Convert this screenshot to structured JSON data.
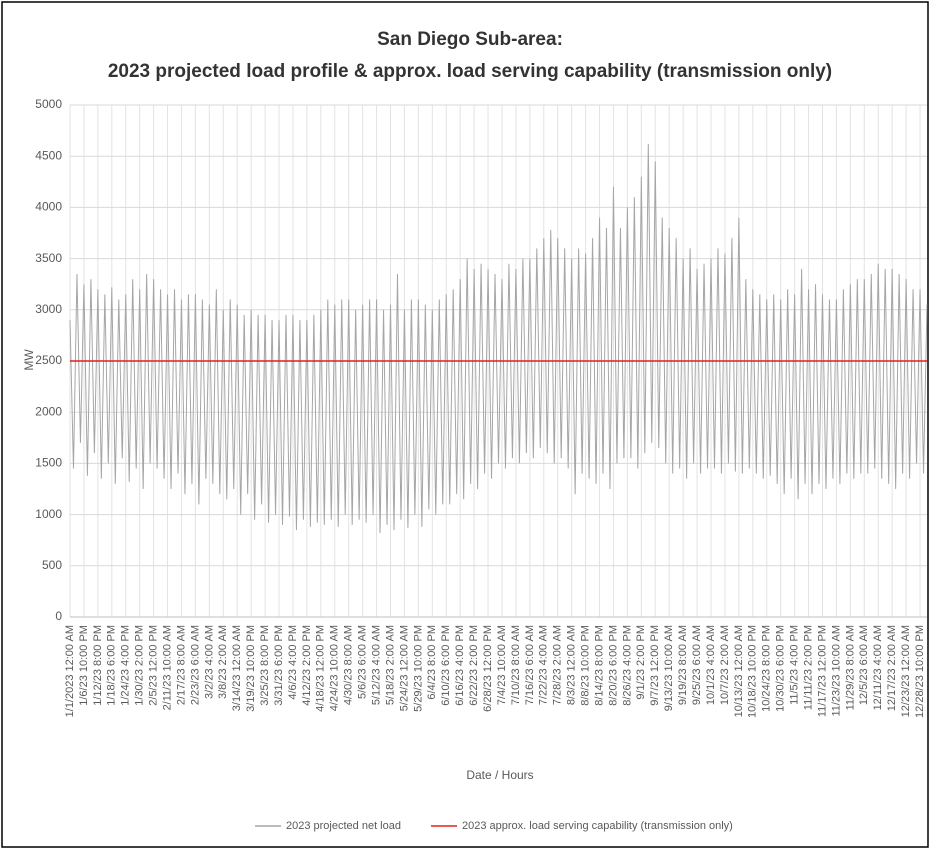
{
  "chart_data": {
    "type": "line",
    "title": [
      "San Diego Sub-area:",
      "2023 projected load profile & approx. load serving capability (transmission only)"
    ],
    "x_label": "Date / Hours",
    "y_label": "MW",
    "ylim": [
      0,
      5000
    ],
    "yticks": [
      0,
      500,
      1000,
      1500,
      2000,
      2500,
      3000,
      3500,
      4000,
      4500,
      5000
    ],
    "grid": true,
    "categories": [
      "1/1/2023 12:00 AM",
      null,
      null,
      null,
      "1/6/23 10:00 PM",
      null,
      null,
      null,
      "1/12/23 8:00 PM",
      null,
      null,
      null,
      "1/18/23 6:00 PM",
      null,
      null,
      null,
      "1/24/23 4:00 PM",
      null,
      null,
      null,
      "1/30/23 2:00 PM",
      null,
      null,
      null,
      "2/5/23 12:00 PM",
      null,
      null,
      null,
      "2/11/23 10:00 AM",
      null,
      null,
      null,
      "2/17/23 8:00 AM",
      null,
      null,
      null,
      "2/23/23 6:00 AM",
      null,
      null,
      null,
      "3/2/23 4:00 AM",
      null,
      null,
      null,
      "3/8/23 2:00 AM",
      null,
      null,
      null,
      "3/14/23 12:00 AM",
      null,
      null,
      null,
      "3/19/23 10:00 PM",
      null,
      null,
      null,
      "3/25/23 8:00 PM",
      null,
      null,
      null,
      "3/31/23 6:00 PM",
      null,
      null,
      null,
      "4/6/23 4:00 PM",
      null,
      null,
      null,
      "4/12/23 2:00 PM",
      null,
      null,
      null,
      "4/18/23 12:00 PM",
      null,
      null,
      null,
      "4/24/23 10:00 AM",
      null,
      null,
      null,
      "4/30/23 8:00 AM",
      null,
      null,
      null,
      "5/6/23 6:00 AM",
      null,
      null,
      null,
      "5/12/23 4:00 AM",
      null,
      null,
      null,
      "5/18/23 2:00 AM",
      null,
      null,
      null,
      "5/24/23 12:00 AM",
      null,
      null,
      null,
      "5/29/23 10:00 PM",
      null,
      null,
      null,
      "6/4/23 8:00 PM",
      null,
      null,
      null,
      "6/10/23 6:00 PM",
      null,
      null,
      null,
      "6/16/23 4:00 PM",
      null,
      null,
      null,
      "6/22/23 2:00 PM",
      null,
      null,
      null,
      "6/28/23 12:00 PM",
      null,
      null,
      null,
      "7/4/23 10:00 AM",
      null,
      null,
      null,
      "7/10/23 8:00 AM",
      null,
      null,
      null,
      "7/16/23 6:00 AM",
      null,
      null,
      null,
      "7/22/23 4:00 AM",
      null,
      null,
      null,
      "7/28/23 2:00 AM",
      null,
      null,
      null,
      "8/3/23 12:00 AM",
      null,
      null,
      null,
      "8/8/23 10:00 PM",
      null,
      null,
      null,
      "8/14/23 8:00 PM",
      null,
      null,
      null,
      "8/20/23 6:00 PM",
      null,
      null,
      null,
      "8/26/23 4:00 PM",
      null,
      null,
      null,
      "9/1/23 2:00 PM",
      null,
      null,
      null,
      "9/7/23 12:00 PM",
      null,
      null,
      null,
      "9/13/23 10:00 AM",
      null,
      null,
      null,
      "9/19/23 8:00 AM",
      null,
      null,
      null,
      "9/25/23 6:00 AM",
      null,
      null,
      null,
      "10/1/23 4:00 AM",
      null,
      null,
      null,
      "10/7/23 2:00 AM",
      null,
      null,
      null,
      "10/13/23 12:00 AM",
      null,
      null,
      null,
      "10/18/23 10:00 PM",
      null,
      null,
      null,
      "10/24/23 8:00 PM",
      null,
      null,
      null,
      "10/30/23 6:00 PM",
      null,
      null,
      null,
      "11/5/23 4:00 PM",
      null,
      null,
      null,
      "11/11/23 2:00 PM",
      null,
      null,
      null,
      "11/17/23 12:00 PM",
      null,
      null,
      null,
      "11/23/23 10:00 AM",
      null,
      null,
      null,
      "11/29/23 8:00 AM",
      null,
      null,
      null,
      "12/5/23 6:00 AM",
      null,
      null,
      null,
      "12/11/23 4:00 AM",
      null,
      null,
      null,
      "12/17/23 2:00 AM",
      null,
      null,
      null,
      "12/23/23 12:00 AM",
      null,
      null,
      null,
      "12/28/23 10:00 PM",
      null,
      null
    ],
    "series": [
      {
        "name": "2023 projected net load",
        "color": "#a6a6a6",
        "values": [
          2900,
          1450,
          3350,
          1700,
          3250,
          1380,
          3300,
          1600,
          3200,
          1350,
          3150,
          1500,
          3220,
          1300,
          3100,
          1550,
          3150,
          1320,
          3300,
          1450,
          3200,
          1250,
          3350,
          1500,
          3300,
          1450,
          3200,
          1350,
          3150,
          1250,
          3200,
          1400,
          3100,
          1200,
          3150,
          1300,
          3150,
          1100,
          3100,
          1350,
          3050,
          1300,
          3200,
          1200,
          3000,
          1150,
          3100,
          1250,
          3050,
          1000,
          2950,
          1200,
          3000,
          950,
          2950,
          1100,
          2950,
          920,
          2900,
          1000,
          2900,
          900,
          2950,
          980,
          2950,
          850,
          2900,
          950,
          2900,
          880,
          2950,
          920,
          3000,
          900,
          3100,
          950,
          3050,
          880,
          3100,
          1000,
          3100,
          900,
          3000,
          950,
          3050,
          920,
          3100,
          1000,
          3100,
          820,
          3000,
          900,
          3050,
          850,
          3350,
          950,
          3000,
          870,
          3100,
          1000,
          3100,
          880,
          3050,
          1050,
          3000,
          1000,
          3100,
          1100,
          3150,
          1100,
          3200,
          1200,
          3300,
          1150,
          3500,
          1300,
          3400,
          1250,
          3450,
          1400,
          3400,
          1350,
          3350,
          1500,
          3300,
          1450,
          3450,
          1550,
          3400,
          1500,
          3500,
          1600,
          3500,
          1550,
          3600,
          1650,
          3700,
          1600,
          3780,
          1500,
          3700,
          1550,
          3600,
          1450,
          3500,
          1200,
          3600,
          1400,
          3550,
          1350,
          3700,
          1300,
          3900,
          1400,
          3800,
          1250,
          4200,
          1500,
          3800,
          1550,
          4000,
          1550,
          4100,
          1450,
          4300,
          1600,
          4620,
          1700,
          4450,
          1650,
          3900,
          1500,
          3800,
          1400,
          3700,
          1450,
          3500,
          1350,
          3600,
          1500,
          3400,
          1400,
          3450,
          1450,
          3500,
          1450,
          3600,
          1400,
          3550,
          1500,
          3700,
          1420,
          3900,
          1400,
          3300,
          1450,
          3200,
          1400,
          3150,
          1350,
          3100,
          1380,
          3150,
          1300,
          3100,
          1200,
          3200,
          1350,
          3150,
          1150,
          3400,
          1300,
          3200,
          1200,
          3250,
          1300,
          3150,
          1250,
          3100,
          1350,
          3100,
          1300,
          3200,
          1400,
          3250,
          1350,
          3300,
          1400,
          3300,
          1400,
          3350,
          1450,
          3450,
          1350,
          3400,
          1300,
          3400,
          1250,
          3350,
          1400,
          3300,
          1350,
          3200,
          1500,
          3200,
          1400,
          3050
        ]
      }
    ],
    "reference_lines": [
      {
        "name": "2023 approx. load serving capability (transmission only)",
        "color": "#e0201b",
        "value": 2500
      }
    ]
  }
}
